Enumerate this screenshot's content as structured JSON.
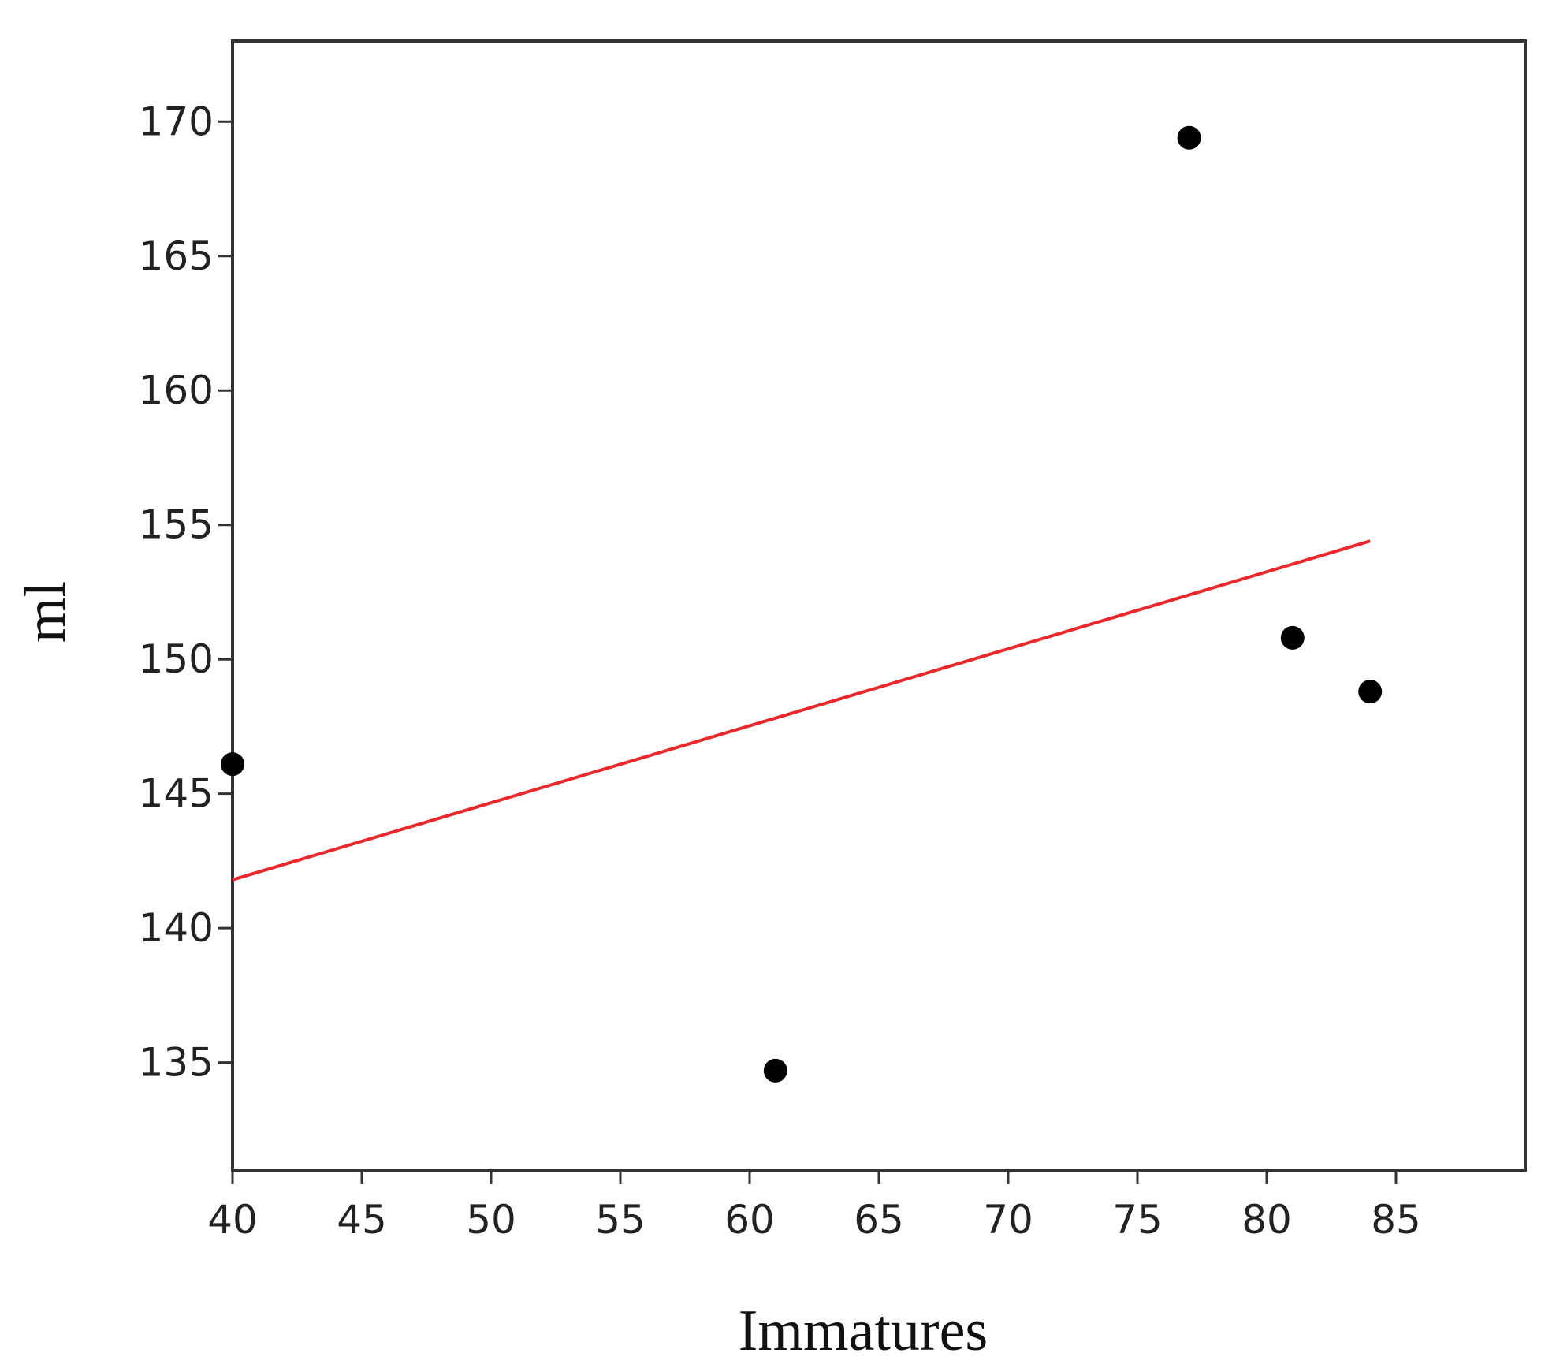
{
  "chart_data": {
    "type": "scatter",
    "xlabel": "Immatures",
    "ylabel": "ml",
    "xlim": [
      40,
      90
    ],
    "ylim": [
      131,
      173
    ],
    "xticks": [
      40,
      45,
      50,
      55,
      60,
      65,
      70,
      75,
      80,
      85
    ],
    "yticks": [
      135,
      140,
      145,
      150,
      155,
      160,
      165,
      170
    ],
    "points": [
      {
        "x": 40,
        "y": 146.1
      },
      {
        "x": 61,
        "y": 134.7
      },
      {
        "x": 77,
        "y": 169.4
      },
      {
        "x": 81,
        "y": 150.8
      },
      {
        "x": 84,
        "y": 148.8
      }
    ],
    "fit_line": {
      "x": [
        40,
        84
      ],
      "y": [
        141.8,
        154.4
      ]
    },
    "colors": {
      "points": "#000000",
      "fit_line": "#e8282b",
      "frame": "#333333"
    },
    "grid": false,
    "legend": "none"
  }
}
